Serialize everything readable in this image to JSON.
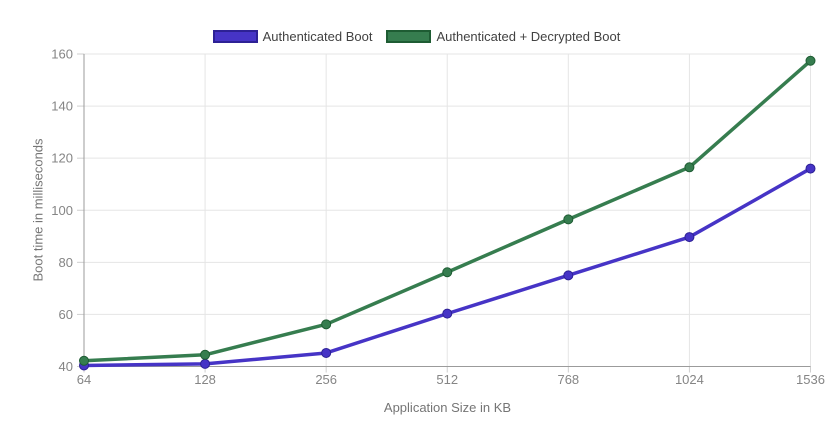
{
  "chart_data": {
    "type": "line",
    "title": "",
    "categories": [
      "64",
      "128",
      "256",
      "512",
      "768",
      "1024",
      "1536"
    ],
    "xlabel": "Application Size in KB",
    "ylabel": "Boot time in milliseconds",
    "ylim": [
      40,
      160
    ],
    "yticks": [
      40,
      60,
      80,
      100,
      120,
      140,
      160
    ],
    "grid": true,
    "legend_position": "top-center",
    "background_color": "#ffffff",
    "gridline_color": "#e5e5e5",
    "axis_line_color": "#9b9b9b",
    "tick_mark_color": "#cfcfcf",
    "tick_label_color": "#858585",
    "axis_title_color": "#757575",
    "legend_text_color": "#424242",
    "series": [
      {
        "name": "Authenticated Boot",
        "color": "#4634c6",
        "border_color": "#2d2195",
        "values": [
          40.4,
          41.0,
          45.2,
          60.3,
          75.0,
          89.7,
          116.0
        ]
      },
      {
        "name": "Authenticated + Decrypted Boot",
        "color": "#367d4f",
        "border_color": "#1e5c33",
        "values": [
          42.2,
          44.5,
          56.2,
          76.2,
          96.5,
          116.5,
          157.4
        ]
      }
    ]
  }
}
